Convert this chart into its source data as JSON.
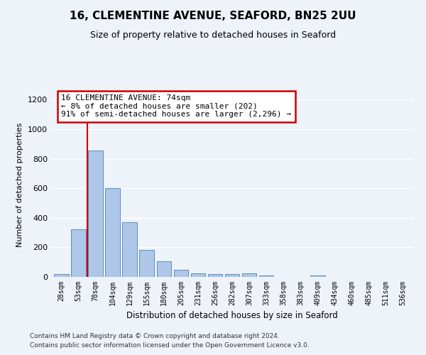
{
  "title_line1": "16, CLEMENTINE AVENUE, SEAFORD, BN25 2UU",
  "title_line2": "Size of property relative to detached houses in Seaford",
  "xlabel": "Distribution of detached houses by size in Seaford",
  "ylabel": "Number of detached properties",
  "bar_labels": [
    "28sqm",
    "53sqm",
    "78sqm",
    "104sqm",
    "129sqm",
    "155sqm",
    "180sqm",
    "205sqm",
    "231sqm",
    "256sqm",
    "282sqm",
    "307sqm",
    "333sqm",
    "358sqm",
    "383sqm",
    "409sqm",
    "434sqm",
    "460sqm",
    "485sqm",
    "511sqm",
    "536sqm"
  ],
  "bar_values": [
    18,
    320,
    855,
    600,
    370,
    185,
    107,
    47,
    23,
    18,
    18,
    22,
    10,
    0,
    0,
    12,
    0,
    0,
    0,
    0,
    0
  ],
  "bar_color": "#aec6e8",
  "bar_edgecolor": "#5a8fc2",
  "annotation_line1": "16 CLEMENTINE AVENUE: 74sqm",
  "annotation_line2": "← 8% of detached houses are smaller (202)",
  "annotation_line3": "91% of semi-detached houses are larger (2,296) →",
  "annotation_box_color": "#ffffff",
  "annotation_box_edgecolor": "#cc0000",
  "redline_x": 1.5,
  "ylim": [
    0,
    1250
  ],
  "yticks": [
    0,
    200,
    400,
    600,
    800,
    1000,
    1200
  ],
  "footer_line1": "Contains HM Land Registry data © Crown copyright and database right 2024.",
  "footer_line2": "Contains public sector information licensed under the Open Government Licence v3.0.",
  "bg_color": "#eef2f9",
  "grid_color": "#ffffff"
}
